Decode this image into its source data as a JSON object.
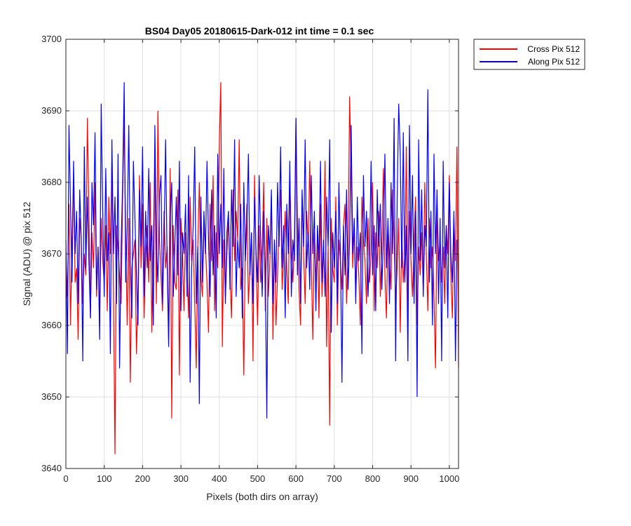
{
  "chart_data": {
    "type": "line",
    "title": "BS04 Day05 20180615-Dark-012 int time = 0.1 sec",
    "xlabel": "Pixels (both dirs on array)",
    "ylabel": "Signal (ADU) @ pix 512",
    "xlim": [
      0,
      1024
    ],
    "ylim": [
      3640,
      3700
    ],
    "xticks": [
      0,
      100,
      200,
      300,
      400,
      500,
      600,
      700,
      800,
      900,
      1000
    ],
    "yticks": [
      3640,
      3650,
      3660,
      3670,
      3680,
      3690,
      3700
    ],
    "grid": true,
    "legend_position": "outside top-right",
    "x_step": 4,
    "series": [
      {
        "name": "Cross Pix 512",
        "color": "#ff0000",
        "values": [
          3670,
          3664,
          3677,
          3660,
          3672,
          3681,
          3666,
          3668,
          3658,
          3675,
          3672,
          3663,
          3670,
          3667,
          3689,
          3676,
          3661,
          3673,
          3668,
          3680,
          3664,
          3671,
          3660,
          3675,
          3669,
          3666,
          3674,
          3662,
          3678,
          3670,
          3683,
          3665,
          3642,
          3674,
          3671,
          3667,
          3663,
          3678,
          3689,
          3672,
          3660,
          3675,
          3652,
          3668,
          3670,
          3672,
          3656,
          3664,
          3681,
          3668,
          3677,
          3661,
          3670,
          3674,
          3666,
          3680,
          3659,
          3671,
          3684,
          3663,
          3690,
          3672,
          3667,
          3662,
          3676,
          3668,
          3671,
          3658,
          3682,
          3647,
          3674,
          3666,
          3665,
          3679,
          3653,
          3675,
          3670,
          3662,
          3673,
          3668,
          3661,
          3678,
          3669,
          3672,
          3663,
          3654,
          3671,
          3680,
          3667,
          3664,
          3674,
          3671,
          3666,
          3659,
          3677,
          3669,
          3681,
          3662,
          3673,
          3668,
          3685,
          3694,
          3657,
          3672,
          3664,
          3670,
          3675,
          3667,
          3661,
          3679,
          3669,
          3676,
          3672,
          3686,
          3665,
          3668,
          3653,
          3671,
          3677,
          3663,
          3668,
          3673,
          3655,
          3681,
          3669,
          3660,
          3674,
          3666,
          3671,
          3680,
          3662,
          3675,
          3664,
          3669,
          3678,
          3658,
          3672,
          3660,
          3667,
          3674,
          3679,
          3665,
          3670,
          3676,
          3668,
          3663,
          3681,
          3671,
          3666,
          3672,
          3689,
          3674,
          3665,
          3660,
          3678,
          3670,
          3663,
          3676,
          3671,
          3683,
          3669,
          3658,
          3673,
          3666,
          3672,
          3661,
          3677,
          3664,
          3670,
          3683,
          3657,
          3671,
          3646,
          3675,
          3668,
          3666,
          3678,
          3660,
          3672,
          3669,
          3665,
          3674,
          3677,
          3663,
          3670,
          3692,
          3681,
          3668,
          3674,
          3664,
          3671,
          3667,
          3660,
          3678,
          3672,
          3669,
          3663,
          3675,
          3666,
          3670,
          3680,
          3662,
          3673,
          3668,
          3676,
          3664,
          3671,
          3682,
          3667,
          3661,
          3674,
          3670,
          3665,
          3679,
          3672,
          3663,
          3668,
          3675,
          3659,
          3673,
          3666,
          3670,
          3685,
          3662,
          3676,
          3669,
          3664,
          3672,
          3678,
          3660,
          3671,
          3667,
          3673,
          3665,
          3680,
          3670,
          3662,
          3675,
          3668,
          3671,
          3664,
          3654,
          3677,
          3669,
          3672,
          3666,
          3671,
          3663,
          3674,
          3670,
          3681,
          3667,
          3661,
          3675,
          3669,
          3685,
          3654,
          3670
        ]
      },
      {
        "name": "Along Pix 512",
        "color": "#0000ff",
        "values": [
          3672,
          3656,
          3688,
          3677,
          3666,
          3683,
          3670,
          3676,
          3663,
          3679,
          3672,
          3655,
          3685,
          3668,
          3678,
          3669,
          3661,
          3680,
          3674,
          3687,
          3665,
          3671,
          3658,
          3691,
          3676,
          3664,
          3682,
          3669,
          3673,
          3656,
          3686,
          3670,
          3678,
          3663,
          3684,
          3654,
          3671,
          3680,
          3694,
          3666,
          3674,
          3688,
          3669,
          3661,
          3683,
          3675,
          3667,
          3660,
          3679,
          3671,
          3685,
          3664,
          3676,
          3668,
          3682,
          3669,
          3674,
          3660,
          3688,
          3671,
          3666,
          3678,
          3681,
          3663,
          3672,
          3686,
          3669,
          3657,
          3675,
          3680,
          3664,
          3671,
          3678,
          3667,
          3683,
          3662,
          3673,
          3670,
          3677,
          3664,
          3681,
          3652,
          3668,
          3674,
          3685,
          3663,
          3671,
          3649,
          3678,
          3666,
          3676,
          3670,
          3683,
          3672,
          3664,
          3679,
          3667,
          3674,
          3661,
          3684,
          3670,
          3677,
          3668,
          3682,
          3663,
          3673,
          3676,
          3665,
          3679,
          3671,
          3686,
          3664,
          3672,
          3668,
          3677,
          3661,
          3680,
          3669,
          3674,
          3684,
          3667,
          3673,
          3663,
          3678,
          3670,
          3666,
          3681,
          3672,
          3664,
          3676,
          3668,
          3647,
          3674,
          3670,
          3679,
          3663,
          3672,
          3666,
          3680,
          3671,
          3685,
          3668,
          3674,
          3661,
          3677,
          3670,
          3683,
          3664,
          3672,
          3669,
          3689,
          3667,
          3675,
          3663,
          3679,
          3671,
          3686,
          3668,
          3673,
          3665,
          3681,
          3670,
          3676,
          3662,
          3674,
          3669,
          3683,
          3666,
          3672,
          3664,
          3678,
          3671,
          3686,
          3659,
          3673,
          3668,
          3676,
          3663,
          3680,
          3670,
          3652,
          3674,
          3667,
          3679,
          3665,
          3672,
          3688,
          3670,
          3675,
          3663,
          3678,
          3669,
          3673,
          3656,
          3681,
          3671,
          3676,
          3664,
          3670,
          3683,
          3667,
          3674,
          3662,
          3679,
          3671,
          3677,
          3665,
          3672,
          3684,
          3668,
          3675,
          3663,
          3680,
          3670,
          3689,
          3655,
          3678,
          3691,
          3684,
          3668,
          3687,
          3666,
          3674,
          3655,
          3688,
          3670,
          3681,
          3663,
          3676,
          3650,
          3686,
          3669,
          3679,
          3664,
          3674,
          3671,
          3693,
          3666,
          3676,
          3660,
          3684,
          3670,
          3679,
          3663,
          3675,
          3655,
          3683,
          3668,
          3674,
          3661,
          3680,
          3670,
          3666,
          3676,
          3655,
          3672
        ]
      }
    ]
  }
}
